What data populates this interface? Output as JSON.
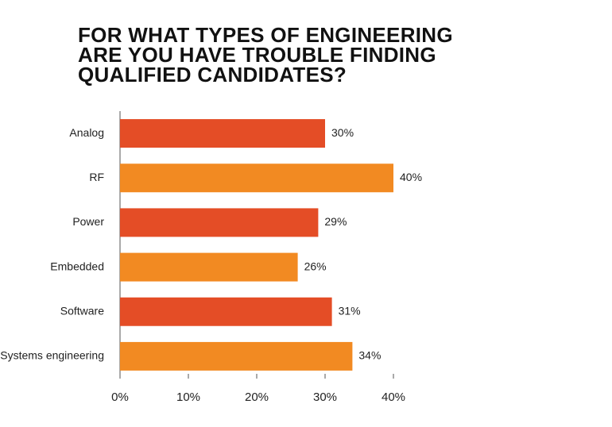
{
  "chart_data": {
    "type": "bar",
    "orientation": "horizontal",
    "title": "FOR WHAT TYPES OF ENGINEERING ARE YOU HAVE TROUBLE FINDING QUALIFIED CANDIDATES?",
    "categories": [
      "Analog",
      "RF",
      "Power",
      "Embedded",
      "Software",
      "Systems engineering"
    ],
    "values": [
      30,
      40,
      29,
      26,
      31,
      34
    ],
    "value_labels": [
      "30%",
      "40%",
      "29%",
      "26%",
      "31%",
      "34%"
    ],
    "colors": [
      "#e44d26",
      "#f28a22",
      "#e44d26",
      "#f28a22",
      "#e44d26",
      "#f28a22"
    ],
    "xlim": [
      0,
      40
    ],
    "xticks": [
      {
        "value": 0,
        "label": "0%"
      },
      {
        "value": 10,
        "label": "10%"
      },
      {
        "value": 20,
        "label": "20%"
      },
      {
        "value": 30,
        "label": "30%"
      },
      {
        "value": 40,
        "label": "40%"
      }
    ],
    "grid": false
  }
}
